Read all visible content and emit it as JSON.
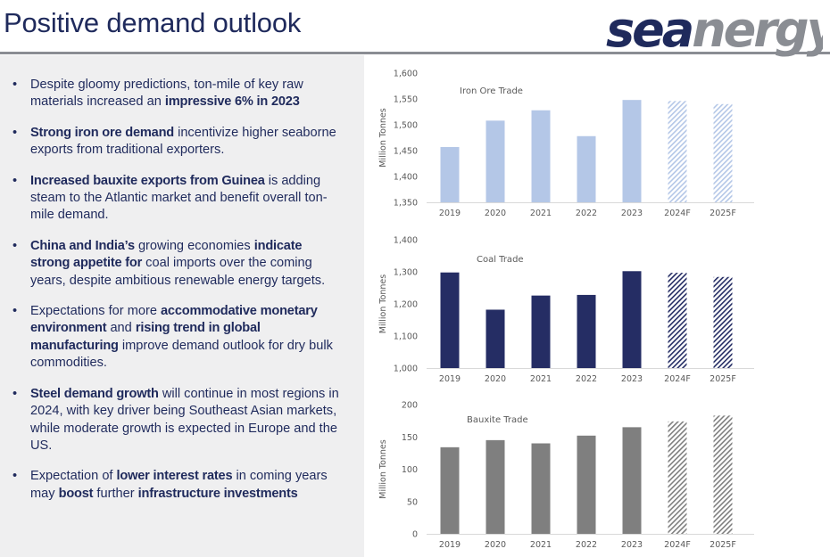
{
  "slide": {
    "title": "Positive demand outlook",
    "logo_text": "seanergy"
  },
  "bullets": [
    [
      {
        "t": "Despite gloomy predictions, ton-mile of key raw materials increased an "
      },
      {
        "t": "impressive 6% in 2023",
        "b": true
      }
    ],
    [
      {
        "t": "Strong iron ore demand",
        "b": true
      },
      {
        "t": " incentivize higher seaborne exports from traditional exporters."
      }
    ],
    [
      {
        "t": "Increased bauxite exports from Guinea",
        "b": true
      },
      {
        "t": " is adding steam to the Atlantic market and benefit overall ton-mile demand."
      }
    ],
    [
      {
        "t": "China and India’s",
        "b": true
      },
      {
        "t": " growing economies "
      },
      {
        "t": "indicate strong appetite for",
        "b": true
      },
      {
        "t": " coal imports over the coming years, despite ambitious renewable energy targets."
      }
    ],
    [
      {
        "t": "Expectations for more "
      },
      {
        "t": "accommodative monetary environment",
        "b": true
      },
      {
        "t": " and "
      },
      {
        "t": "rising trend in global manufacturing",
        "b": true
      },
      {
        "t": " improve demand outlook for dry bulk commodities."
      }
    ],
    [
      {
        "t": "Steel demand growth",
        "b": true
      },
      {
        "t": " will continue in most regions in 2024, with key driver being Southeast Asian markets, while moderate growth is expected in Europe and the US."
      }
    ],
    [
      {
        "t": "Expectation of "
      },
      {
        "t": "lower interest rates",
        "b": true
      },
      {
        "t": " in coming years may "
      },
      {
        "t": "boost",
        "b": true
      },
      {
        "t": " further "
      },
      {
        "t": "infrastructure investments",
        "b": true
      }
    ]
  ],
  "colors": {
    "title": "#1f2a5c",
    "iron": "#b4c7e7",
    "coal": "#252d64",
    "bauxite": "#7f7f7f",
    "axis": "#d9d9d9",
    "logo_blue": "#1f2a5c",
    "logo_gray": "#8a8d93"
  },
  "chart_data": [
    {
      "type": "bar",
      "title": "Iron Ore Trade",
      "ylabel": "Million Tonnes",
      "categories": [
        "2019",
        "2020",
        "2021",
        "2022",
        "2023",
        "2024F",
        "2025F"
      ],
      "values": [
        1457,
        1508,
        1528,
        1478,
        1548,
        1546,
        1540
      ],
      "forecast": [
        false,
        false,
        false,
        false,
        false,
        true,
        true
      ],
      "ylim": [
        1350,
        1600
      ],
      "yticks": [
        1350,
        1400,
        1450,
        1500,
        1550,
        1600
      ],
      "ytick_labels": [
        "1,350",
        "1,400",
        "1,450",
        "1,500",
        "1,550",
        "1,600"
      ],
      "color_key": "iron"
    },
    {
      "type": "bar",
      "title": "Coal Trade",
      "ylabel": "Million Tonnes",
      "categories": [
        "2019",
        "2020",
        "2021",
        "2022",
        "2023",
        "2024F",
        "2025F"
      ],
      "values": [
        1298,
        1182,
        1226,
        1228,
        1302,
        1297,
        1284
      ],
      "forecast": [
        false,
        false,
        false,
        false,
        false,
        true,
        true
      ],
      "ylim": [
        1000,
        1400
      ],
      "yticks": [
        1000,
        1100,
        1200,
        1300,
        1400
      ],
      "ytick_labels": [
        "1,000",
        "1,100",
        "1,200",
        "1,300",
        "1,400"
      ],
      "color_key": "coal"
    },
    {
      "type": "bar",
      "title": "Bauxite Trade",
      "ylabel": "Million Tonnes",
      "categories": [
        "2019",
        "2020",
        "2021",
        "2022",
        "2023",
        "2024F",
        "2025F"
      ],
      "values": [
        134,
        145,
        140,
        152,
        165,
        174,
        183
      ],
      "forecast": [
        false,
        false,
        false,
        false,
        false,
        true,
        true
      ],
      "ylim": [
        0,
        200
      ],
      "yticks": [
        0,
        50,
        100,
        150,
        200
      ],
      "ytick_labels": [
        "0",
        "50",
        "100",
        "150",
        "200"
      ],
      "color_key": "bauxite"
    }
  ]
}
